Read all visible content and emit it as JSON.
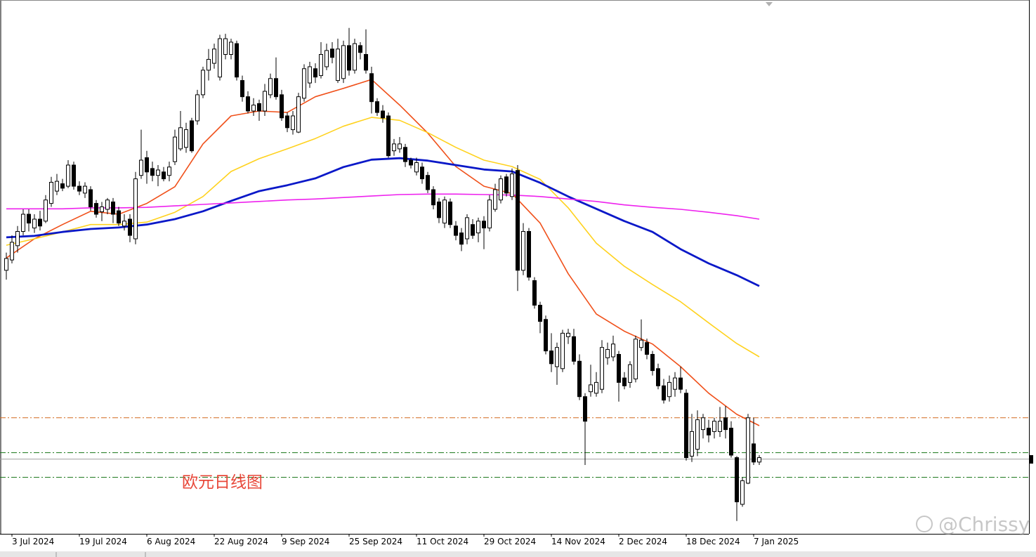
{
  "chart_data": {
    "type": "candlestick",
    "categories": [
      null,
      "3 Jul 2024",
      null,
      null,
      null,
      null,
      null,
      null,
      null,
      null,
      null,
      null,
      null,
      "19 Jul 2024",
      null,
      null,
      null,
      null,
      null,
      null,
      null,
      null,
      null,
      null,
      null,
      "6 Aug 2024",
      null,
      null,
      null,
      null,
      null,
      null,
      null,
      null,
      null,
      null,
      null,
      "22 Aug 2024",
      null,
      null,
      null,
      null,
      null,
      null,
      null,
      null,
      null,
      null,
      null,
      "9 Sep 2024",
      null,
      null,
      null,
      null,
      null,
      null,
      null,
      null,
      null,
      null,
      null,
      "25 Sep 2024",
      null,
      null,
      null,
      null,
      null,
      null,
      null,
      null,
      null,
      null,
      null,
      "11 Oct 2024",
      null,
      null,
      null,
      null,
      null,
      null,
      null,
      null,
      null,
      null,
      null,
      "29 Oct 2024",
      null,
      null,
      null,
      null,
      null,
      null,
      null,
      null,
      null,
      null,
      null,
      "14 Nov 2024",
      null,
      null,
      null,
      null,
      null,
      null,
      null,
      null,
      null,
      null,
      null,
      "2 Dec 2024",
      null,
      null,
      null,
      null,
      null,
      null,
      null,
      null,
      null,
      null,
      null,
      "18 Dec 2024",
      null,
      null,
      null,
      null,
      null,
      null,
      null,
      null,
      null,
      null,
      null,
      "7 Jan 2025",
      null
    ],
    "open": [
      1.0736,
      1.0757,
      1.0786,
      1.0815,
      1.085,
      1.0822,
      1.084,
      1.0836,
      1.0872,
      1.0897,
      1.0912,
      1.0907,
      1.095,
      1.0907,
      1.0893,
      1.09,
      1.0872,
      1.0855,
      1.086,
      1.0875,
      1.0857,
      1.0826,
      1.084,
      1.08,
      1.0929,
      1.0965,
      1.0943,
      1.0929,
      1.0936,
      1.0929,
      1.0957,
      1.0983,
      1.0986,
      1.104,
      1.104,
      1.1093,
      1.1143,
      1.1157,
      1.1129,
      1.1175,
      1.1175,
      1.1197,
      1.1122,
      1.1089,
      1.106,
      1.1075,
      1.106,
      1.1093,
      1.1126,
      1.1093,
      1.105,
      1.1022,
      1.1017,
      1.1086,
      1.1117,
      1.1146,
      1.1132,
      1.115,
      1.1186,
      1.1122,
      1.1126,
      1.1193,
      1.1143,
      1.1193,
      1.1175,
      1.1136,
      1.1079,
      1.106,
      1.105,
      1.0979,
      1.0983,
      1.0986,
      1.096,
      1.0936,
      1.0946,
      1.0929,
      1.09,
      1.0875,
      1.0832,
      1.0875,
      1.0826,
      1.0812,
      1.08,
      1.0829,
      1.0812,
      1.0836,
      1.0822,
      1.086,
      1.0879,
      1.0926,
      1.0886,
      1.0939,
      1.0736,
      1.0815,
      1.0715,
      1.0665,
      1.0636,
      1.0572,
      1.054,
      1.0536,
      1.0601,
      1.0601,
      1.0551,
      1.0479,
      1.0489,
      1.0486,
      1.0494,
      1.0558,
      1.056,
      1.0565,
      1.0517,
      1.0508,
      1.0515,
      1.0579,
      1.0589,
      1.0565,
      1.0536,
      1.0501,
      1.0479,
      1.0494,
      1.0517,
      1.0486,
      1.0358,
      1.0372,
      1.0412,
      1.0415,
      1.0408,
      1.0408,
      1.0436,
      1.0415,
      1.0355,
      1.026,
      1.0303,
      1.0383,
      1.0346
    ],
    "high": [
      1.0772,
      1.0807,
      1.0826,
      1.086,
      1.086,
      1.085,
      1.0857,
      1.0889,
      1.0926,
      1.0932,
      1.0922,
      1.096,
      1.0957,
      1.0917,
      1.0915,
      1.0907,
      1.0879,
      1.0875,
      1.0883,
      1.0883,
      1.0865,
      1.085,
      1.085,
      1.0936,
      1.1022,
      1.0979,
      1.0957,
      1.095,
      1.0946,
      1.0957,
      1.1022,
      1.106,
      1.1036,
      1.1046,
      1.1103,
      1.115,
      1.1186,
      1.1197,
      1.1215,
      1.1217,
      1.1207,
      1.1203,
      1.1132,
      1.11,
      1.1086,
      1.1083,
      1.1115,
      1.1136,
      1.1169,
      1.1103,
      1.1057,
      1.106,
      1.1097,
      1.1155,
      1.116,
      1.1157,
      1.12,
      1.1197,
      1.12,
      1.1207,
      1.1203,
      1.1229,
      1.1207,
      1.12,
      1.1226,
      1.115,
      1.1086,
      1.1072,
      1.1057,
      1.1003,
      1.1007,
      1.0993,
      1.0965,
      1.0965,
      1.0955,
      1.0936,
      1.0907,
      1.0883,
      1.0886,
      1.0882,
      1.0836,
      1.0822,
      1.085,
      1.084,
      1.0843,
      1.0846,
      1.0889,
      1.0912,
      1.0929,
      1.0932,
      1.0943,
      1.095,
      1.0832,
      1.0822,
      1.0722,
      1.0672,
      1.0644,
      1.0608,
      1.0589,
      1.0615,
      1.0617,
      1.0617,
      1.0565,
      1.0486,
      1.0544,
      1.0529,
      1.0594,
      1.0589,
      1.0603,
      1.0572,
      1.0529,
      1.0551,
      1.0603,
      1.0636,
      1.0597,
      1.0572,
      1.0546,
      1.0515,
      1.0522,
      1.0529,
      1.054,
      1.0494,
      1.0444,
      1.0451,
      1.0444,
      1.0432,
      1.0436,
      1.0458,
      1.046,
      1.0429,
      1.0358,
      1.0315,
      1.0444,
      1.0436,
      1.036
    ],
    "low": [
      1.0717,
      1.075,
      1.0772,
      1.0807,
      1.0815,
      1.0812,
      1.0817,
      1.0832,
      1.0865,
      1.0889,
      1.0897,
      1.0903,
      1.09,
      1.0889,
      1.0883,
      1.0857,
      1.0843,
      1.0836,
      1.085,
      1.0832,
      1.0826,
      1.0817,
      1.0793,
      1.0789,
      1.0922,
      1.0912,
      1.0917,
      1.0907,
      1.0917,
      1.0917,
      1.095,
      1.0979,
      1.0975,
      1.0975,
      1.1032,
      1.1086,
      1.1122,
      1.1146,
      1.1122,
      1.1165,
      1.1165,
      1.1122,
      1.1079,
      1.1055,
      1.105,
      1.104,
      1.105,
      1.1086,
      1.1083,
      1.104,
      1.1017,
      1.1012,
      1.1015,
      1.1079,
      1.1107,
      1.1117,
      1.1126,
      1.1143,
      1.1157,
      1.1117,
      1.1117,
      1.1132,
      1.1136,
      1.1165,
      1.1136,
      1.1055,
      1.105,
      1.1036,
      1.0965,
      1.0969,
      1.0975,
      1.0946,
      1.0943,
      1.0929,
      1.0912,
      1.0893,
      1.086,
      1.0832,
      1.0822,
      1.0822,
      1.0797,
      1.0775,
      1.0789,
      1.08,
      1.0793,
      1.0779,
      1.0815,
      1.0855,
      1.0872,
      1.0886,
      1.0879,
      1.0694,
      1.0726,
      1.0715,
      1.0658,
      1.0608,
      1.0565,
      1.0529,
      1.0503,
      1.0529,
      1.0586,
      1.0544,
      1.0472,
      1.034,
      1.0479,
      1.0479,
      1.0486,
      1.0544,
      1.0551,
      1.0469,
      1.0494,
      1.0497,
      1.0508,
      1.0572,
      1.0555,
      1.0522,
      1.0494,
      1.0465,
      1.0469,
      1.0479,
      1.0486,
      1.0349,
      1.0346,
      1.0358,
      1.0394,
      1.0386,
      1.0394,
      1.0397,
      1.0394,
      1.0355,
      1.0226,
      1.0255,
      1.0301,
      1.034,
      1.034
    ],
    "close": [
      1.076,
      1.0793,
      1.0815,
      1.085,
      1.0832,
      1.084,
      1.0826,
      1.0879,
      1.0915,
      1.0917,
      1.0903,
      1.095,
      1.0907,
      1.0897,
      1.0907,
      1.0865,
      1.085,
      1.0865,
      1.0879,
      1.085,
      1.0832,
      1.0836,
      1.0807,
      1.0922,
      1.096,
      1.0936,
      1.0929,
      1.094,
      1.0922,
      1.0946,
      1.1007,
      1.1026,
      1.1022,
      1.0979,
      1.1093,
      1.1143,
      1.1165,
      1.1186,
      1.1207,
      1.1207,
      1.12,
      1.1129,
      1.1089,
      1.106,
      1.1072,
      1.106,
      1.11,
      1.1126,
      1.1089,
      1.1046,
      1.1026,
      1.105,
      1.1089,
      1.1146,
      1.115,
      1.1129,
      1.1175,
      1.1183,
      1.1169,
      1.1186,
      1.1193,
      1.1143,
      1.1197,
      1.1179,
      1.1143,
      1.1079,
      1.1057,
      1.1046,
      1.0969,
      1.0993,
      1.0993,
      1.0957,
      1.095,
      1.0955,
      1.0922,
      1.09,
      1.0869,
      1.0843,
      1.0879,
      1.0829,
      1.0807,
      1.0789,
      1.0843,
      1.0807,
      1.0836,
      1.0822,
      1.0879,
      1.09,
      1.0922,
      1.0893,
      1.0932,
      1.0736,
      1.0815,
      1.0722,
      1.0665,
      1.0632,
      1.0572,
      1.0546,
      1.0579,
      1.0608,
      1.0608,
      1.0551,
      1.0479,
      1.0429,
      1.0503,
      1.0508,
      1.0579,
      1.0575,
      1.0586,
      1.0508,
      1.0501,
      1.0544,
      1.0596,
      1.0594,
      1.0565,
      1.0532,
      1.0501,
      1.0472,
      1.0508,
      1.0517,
      1.0494,
      1.0355,
      1.0408,
      1.0432,
      1.0436,
      1.0401,
      1.0429,
      1.0429,
      1.0412,
      1.036,
      1.0265,
      1.0308,
      1.0436,
      1.0346,
      1.0355
    ],
    "ylim": [
      1.02,
      1.128
    ],
    "up_color": "#ffffff",
    "down_color": "#000000",
    "moving_averages": [
      {
        "color": "#f0501a",
        "width": 1.6,
        "x": [
          0,
          5,
          10,
          15,
          20,
          25,
          30,
          35,
          40,
          45,
          50,
          55,
          60,
          65,
          70,
          75,
          80,
          85,
          90,
          95,
          100,
          105,
          110,
          115,
          120,
          125,
          130,
          134
        ],
        "values": [
          1.0761,
          1.08,
          1.0829,
          1.0856,
          1.085,
          1.0872,
          1.0906,
          1.0993,
          1.105,
          1.106,
          1.1057,
          1.1089,
          1.1106,
          1.1124,
          1.1072,
          1.1015,
          1.0947,
          1.0907,
          1.0892,
          1.0832,
          1.0729,
          1.0647,
          1.0612,
          1.0586,
          1.054,
          1.0486,
          1.0443,
          1.042
        ]
      },
      {
        "color": "#ffd21e",
        "width": 1.6,
        "x": [
          0,
          5,
          10,
          15,
          20,
          25,
          30,
          35,
          40,
          45,
          50,
          55,
          60,
          65,
          70,
          75,
          80,
          85,
          90,
          95,
          100,
          105,
          110,
          115,
          120,
          125,
          130,
          134
        ],
        "values": [
          1.0787,
          1.08,
          1.0814,
          1.0829,
          1.0829,
          1.0834,
          1.0854,
          1.0886,
          1.0937,
          1.0963,
          1.0983,
          1.1004,
          1.1029,
          1.1047,
          1.1041,
          1.1016,
          1.0986,
          1.096,
          1.0947,
          1.0921,
          1.0863,
          1.0791,
          1.0744,
          1.0707,
          1.0672,
          1.0629,
          1.0587,
          1.056
        ]
      },
      {
        "color": "#0a18c8",
        "width": 2.8,
        "x": [
          0,
          5,
          10,
          15,
          20,
          25,
          30,
          35,
          40,
          45,
          50,
          55,
          60,
          65,
          70,
          75,
          80,
          85,
          90,
          95,
          100,
          105,
          110,
          115,
          120,
          125,
          130,
          134
        ],
        "values": [
          1.0803,
          1.0806,
          1.0814,
          1.082,
          1.0823,
          1.0829,
          1.084,
          1.0856,
          1.0877,
          1.0897,
          1.0909,
          1.0923,
          1.0946,
          1.0961,
          1.0964,
          1.0959,
          1.095,
          1.0941,
          1.0937,
          1.0914,
          1.0886,
          1.0861,
          1.0836,
          1.0814,
          1.0779,
          1.075,
          1.0726,
          1.0704
        ]
      },
      {
        "color": "#ee22ee",
        "width": 1.6,
        "x": [
          0,
          5,
          10,
          15,
          20,
          25,
          30,
          35,
          40,
          45,
          50,
          55,
          60,
          65,
          70,
          75,
          80,
          85,
          90,
          95,
          100,
          105,
          110,
          115,
          120,
          125,
          130,
          134
        ],
        "values": [
          1.0861,
          1.0861,
          1.0861,
          1.0863,
          1.0863,
          1.0864,
          1.0867,
          1.087,
          1.0873,
          1.0876,
          1.0879,
          1.0881,
          1.0884,
          1.0887,
          1.089,
          1.0891,
          1.0891,
          1.089,
          1.0889,
          1.0886,
          1.0881,
          1.0876,
          1.0869,
          1.0864,
          1.086,
          1.0854,
          1.0847,
          1.084
        ]
      }
    ],
    "levels": [
      {
        "value": 1.0436,
        "color": "#d2691e",
        "style": "dash-dot"
      },
      {
        "value": 1.0365,
        "color": "#1e7a1e",
        "style": "dash-dot"
      },
      {
        "value": 1.0352,
        "color": "#a0a0a0",
        "style": "solid"
      },
      {
        "value": 1.0315,
        "color": "#1e7a1e",
        "style": "dash-dot"
      }
    ],
    "annotation": "欧元日线图",
    "watermark": "@Chrissy"
  }
}
